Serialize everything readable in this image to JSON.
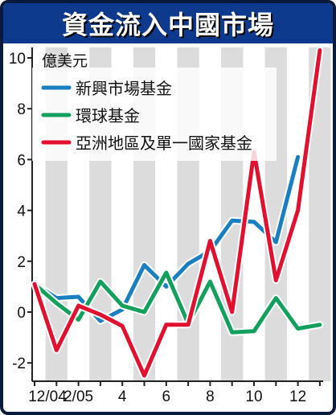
{
  "title": "資金流入中國市場",
  "chart_data": {
    "type": "line",
    "title": "資金流入中國市場",
    "ylabel": "億美元",
    "xlabel": "",
    "ylim": [
      -2.7,
      10.5
    ],
    "yticks": [
      10,
      8,
      6,
      4,
      2,
      0,
      -2
    ],
    "x_tick_labels": [
      {
        "index": 0,
        "label": "12/04"
      },
      {
        "index": 2,
        "label": "2/05"
      },
      {
        "index": 4,
        "label": "4"
      },
      {
        "index": 6,
        "label": "6"
      },
      {
        "index": 8,
        "label": "8"
      },
      {
        "index": 10,
        "label": "10"
      },
      {
        "index": 12,
        "label": "12"
      }
    ],
    "x": [
      "12/04",
      "1/05",
      "2/05",
      "3/05",
      "4/05",
      "5/05",
      "6/05",
      "7/05",
      "8/05",
      "9/05",
      "10/05",
      "11/05",
      "12/05",
      "1/06"
    ],
    "grid": "alternating-vertical-bands",
    "legend_position": "top-left",
    "series": [
      {
        "name": "新興市場基金",
        "color": "#1a7fc1",
        "values": [
          1.1,
          0.55,
          0.6,
          -0.35,
          0.1,
          1.85,
          1.0,
          1.9,
          2.4,
          3.6,
          3.55,
          2.75,
          6.1,
          null
        ]
      },
      {
        "name": "環球基金",
        "color": "#13a05c",
        "values": [
          1.1,
          0.35,
          -0.3,
          1.2,
          0.25,
          0.0,
          1.55,
          -0.45,
          1.2,
          -0.8,
          -0.75,
          0.55,
          -0.65,
          -0.5
        ]
      },
      {
        "name": "亞洲地區及單一國家基金",
        "color": "#e2102f",
        "values": [
          1.1,
          -1.5,
          0.25,
          -0.1,
          -0.55,
          -2.5,
          -0.5,
          -0.5,
          2.8,
          0.0,
          6.3,
          1.25,
          4.0,
          10.3
        ]
      }
    ],
    "series_x_offsets_note_removed": true
  },
  "colors": {
    "title_bar": "#0d3a8c",
    "frame": "#0a1a3c",
    "band": "#dcdcdc"
  }
}
